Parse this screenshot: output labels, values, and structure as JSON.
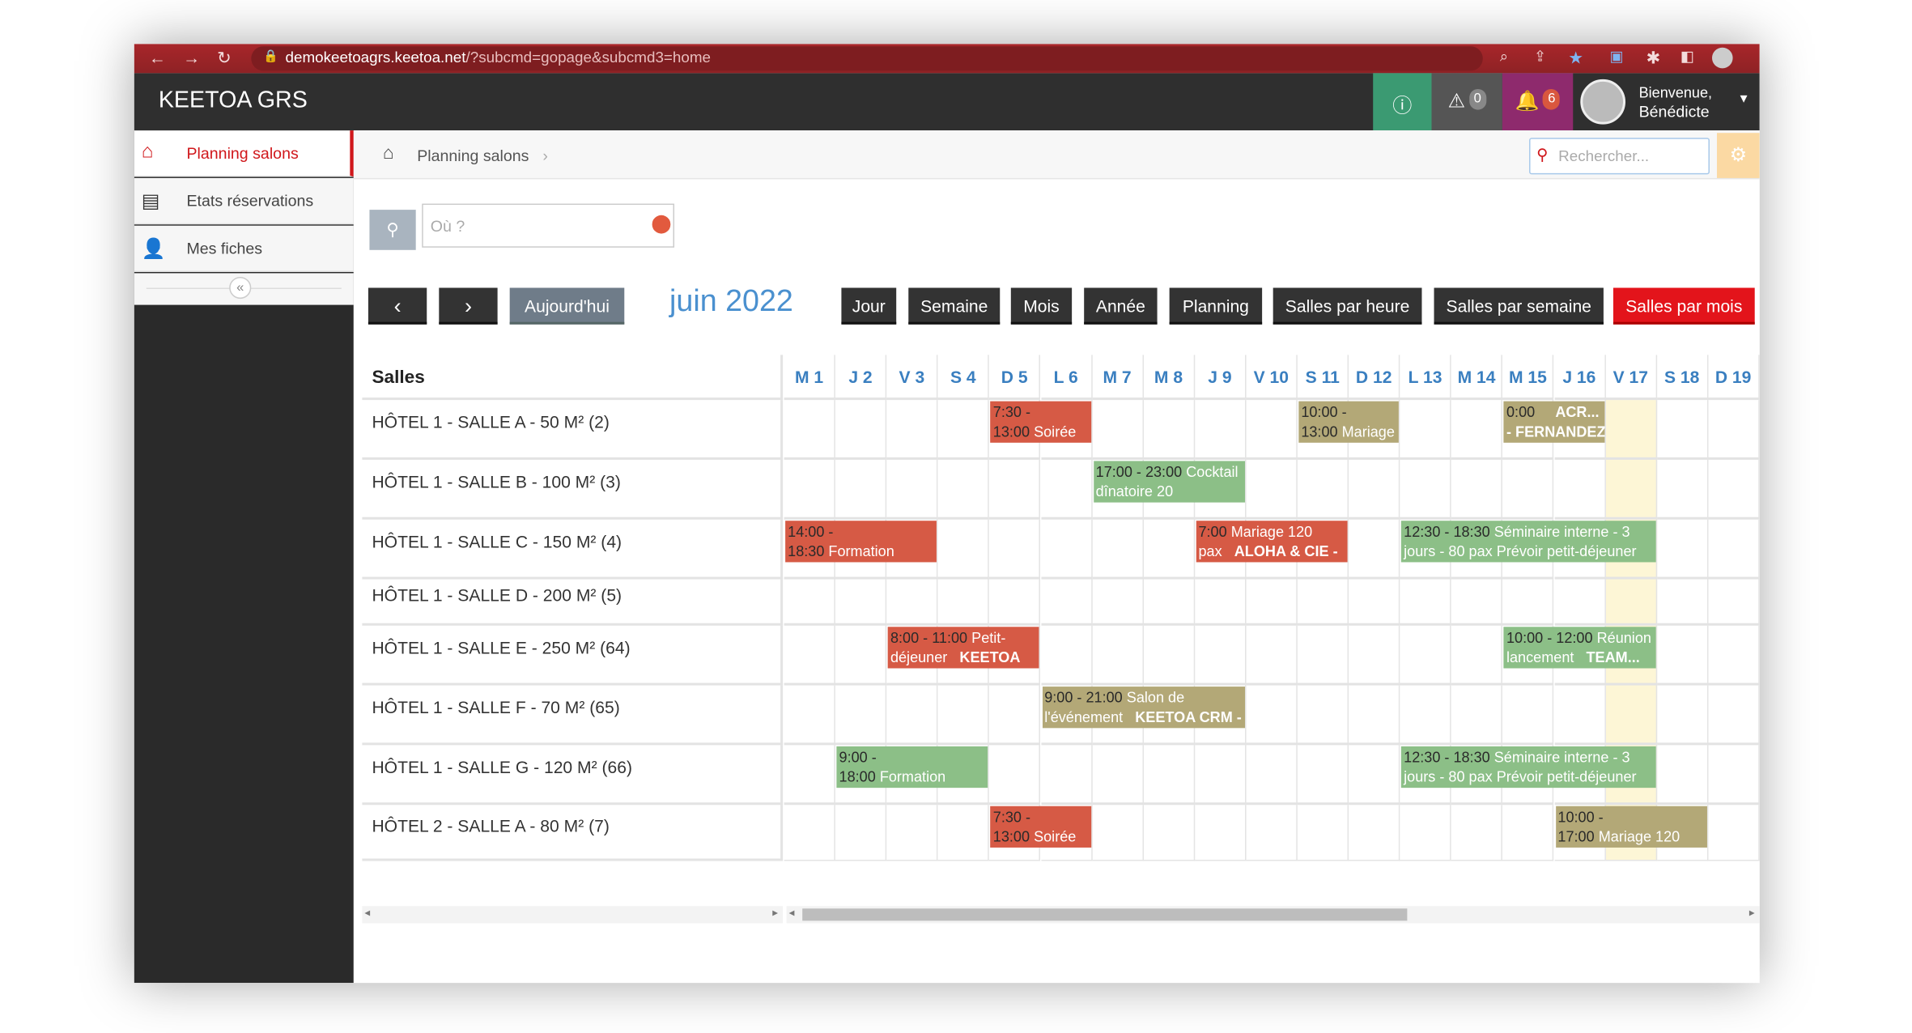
{
  "browser": {
    "url_host": "demokeetoagrs.keetoa.net",
    "url_path": "/?subcmd=gopage&subcmd3=home"
  },
  "app": {
    "title": "KEETOA GRS",
    "warnings": "0",
    "notifications": "6",
    "welcome": "Bienvenue,",
    "user": "Bénédicte"
  },
  "sidebar": {
    "items": [
      {
        "label": "Planning salons",
        "icon": "home-icon"
      },
      {
        "label": "Etats réservations",
        "icon": "list-icon"
      },
      {
        "label": "Mes fiches",
        "icon": "user-icon"
      }
    ],
    "collapse": "«"
  },
  "breadcrumb": {
    "label": "Planning salons",
    "sep": "›"
  },
  "search": {
    "placeholder": "Rechercher..."
  },
  "location": {
    "placeholder": "Où ?"
  },
  "toolbar": {
    "prev": "‹",
    "next": "›",
    "today": "Aujourd'hui",
    "month_title": "juin 2022",
    "views": [
      "Jour",
      "Semaine",
      "Mois",
      "Année",
      "Planning",
      "Salles par heure",
      "Salles par semaine",
      "Salles par mois"
    ],
    "active_view": "Salles par mois"
  },
  "colors": {
    "red": "#d65a45",
    "green": "#8cbf87",
    "tan": "#b3a877",
    "today": "#fdf6d6",
    "active": "#e3141b"
  },
  "grid": {
    "header": "Salles",
    "days": [
      "M 1",
      "J 2",
      "V 3",
      "S 4",
      "D 5",
      "L 6",
      "M 7",
      "M 8",
      "J 9",
      "V 10",
      "S 11",
      "D 12",
      "L 13",
      "M 14",
      "M 15",
      "J 16",
      "V 17",
      "S 18",
      "D 19"
    ],
    "today_day": 17,
    "rooms": [
      "HÔTEL 1 - SALLE A - 50 M² (2)",
      "HÔTEL 1 - SALLE B - 100 M² (3)",
      "HÔTEL 1 - SALLE C - 150 M² (4)",
      "HÔTEL 1 - SALLE D - 200 M² (5)",
      "HÔTEL 1 - SALLE E - 250 M² (64)",
      "HÔTEL 1 - SALLE F - 70 M² (65)",
      "HÔTEL 1 - SALLE G - 120 M² (66)",
      "HÔTEL 2 - SALLE A - 80 M² (7)"
    ],
    "events": [
      {
        "room": 0,
        "from": 5,
        "to": 6,
        "color": "red",
        "l1": [
          "7:30 -",
          ""
        ],
        "l2": [
          "13:00",
          "Soirée"
        ],
        "bold": ""
      },
      {
        "room": 0,
        "from": 11,
        "to": 12,
        "color": "tan",
        "l1": [
          "10:00 -",
          ""
        ],
        "l2": [
          "13:00",
          "Mariage"
        ],
        "bold": ""
      },
      {
        "room": 0,
        "from": 15,
        "to": 16,
        "color": "tan",
        "l1": [
          "0:00",
          ""
        ],
        "l2": [
          "",
          ""
        ],
        "bold": "ACR...",
        "bold2": "- FERNANDEZ"
      },
      {
        "room": 1,
        "from": 7,
        "to": 9,
        "color": "green",
        "l1": [
          "17:00 - 23:00",
          "Cocktail"
        ],
        "l2": [
          "",
          "dînatoire 20"
        ],
        "bold": ""
      },
      {
        "room": 2,
        "from": 1,
        "to": 3,
        "color": "red",
        "l1": [
          "14:00 -",
          ""
        ],
        "l2": [
          "18:30",
          "Formation"
        ],
        "bold": ""
      },
      {
        "room": 2,
        "from": 9,
        "to": 11,
        "color": "red",
        "l1": [
          "7:00",
          "Mariage 120"
        ],
        "l2": [
          "",
          "pax"
        ],
        "bold": "ALOHA & CIE -"
      },
      {
        "room": 2,
        "from": 13,
        "to": 17,
        "color": "green",
        "l1": [
          "12:30 - 18:30",
          "Séminaire interne - 3"
        ],
        "l2": [
          "",
          "jours - 80 pax  Prévoir petit-déjeuner"
        ],
        "bold": ""
      },
      {
        "room": 4,
        "from": 3,
        "to": 5,
        "color": "red",
        "l1": [
          "8:00 - 11:00",
          "Petit-"
        ],
        "l2": [
          "",
          "déjeuner"
        ],
        "bold": "KEETOA"
      },
      {
        "room": 4,
        "from": 15,
        "to": 17,
        "color": "green",
        "l1": [
          "10:00 - 12:00",
          "Réunion"
        ],
        "l2": [
          "",
          "lancement"
        ],
        "bold": "TEAM..."
      },
      {
        "room": 5,
        "from": 6,
        "to": 9,
        "color": "tan",
        "l1": [
          "9:00 - 21:00",
          "Salon de"
        ],
        "l2": [
          "",
          "l'événement"
        ],
        "bold": "KEETOA CRM -"
      },
      {
        "room": 6,
        "from": 2,
        "to": 4,
        "color": "green",
        "l1": [
          "9:00 -",
          ""
        ],
        "l2": [
          "18:00",
          "Formation"
        ],
        "bold": ""
      },
      {
        "room": 6,
        "from": 13,
        "to": 17,
        "color": "green",
        "l1": [
          "12:30 - 18:30",
          "Séminaire interne - 3"
        ],
        "l2": [
          "",
          "jours - 80 pax  Prévoir petit-déjeuner"
        ],
        "bold": ""
      },
      {
        "room": 7,
        "from": 5,
        "to": 6,
        "color": "red",
        "l1": [
          "7:30 -",
          ""
        ],
        "l2": [
          "13:00",
          "Soirée"
        ],
        "bold": ""
      },
      {
        "room": 7,
        "from": 16,
        "to": 18,
        "color": "tan",
        "l1": [
          "10:00 -",
          ""
        ],
        "l2": [
          "17:00",
          "Mariage  120"
        ],
        "bold": ""
      }
    ]
  }
}
